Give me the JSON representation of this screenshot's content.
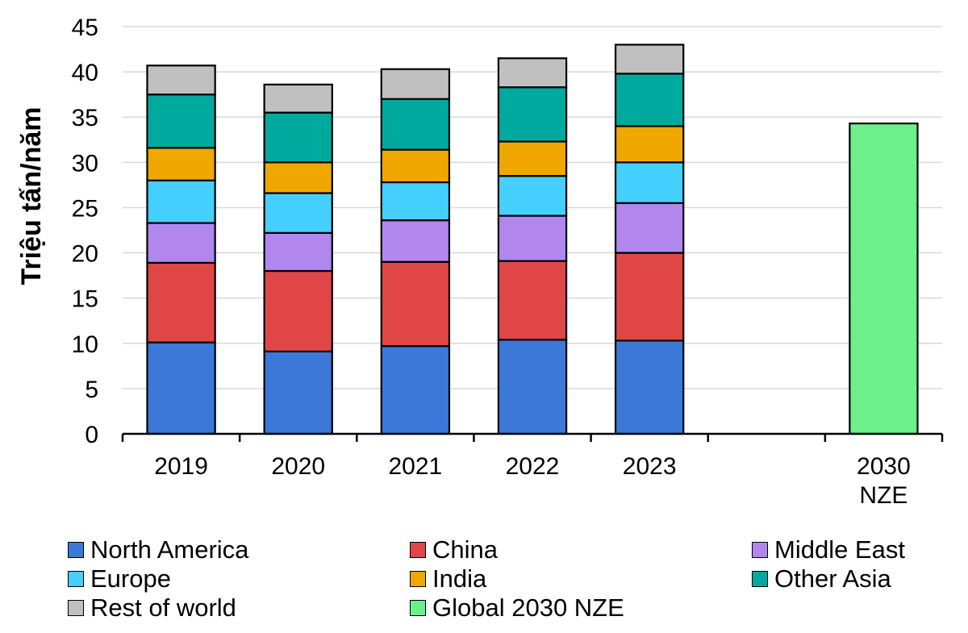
{
  "chart_data": {
    "type": "bar",
    "stacked": true,
    "title": "",
    "xlabel": "",
    "ylabel": "Triệu tấn/năm",
    "ylim": [
      0,
      45
    ],
    "yticks": [
      0,
      5,
      10,
      15,
      20,
      25,
      30,
      35,
      40,
      45
    ],
    "categories": [
      "2019",
      "2020",
      "2021",
      "2022",
      "2023",
      "",
      "2030 NZE"
    ],
    "category_lines": [
      [
        "2019"
      ],
      [
        "2020"
      ],
      [
        "2021"
      ],
      [
        "2022"
      ],
      [
        "2023"
      ],
      [
        ""
      ],
      [
        "2030",
        "NZE"
      ]
    ],
    "grid": true,
    "series": [
      {
        "name": "North America",
        "color": "#3c78d8",
        "values": [
          10.1,
          9.1,
          9.7,
          10.4,
          10.3,
          null,
          null
        ]
      },
      {
        "name": "China",
        "color": "#e04646",
        "values": [
          8.8,
          8.9,
          9.3,
          8.7,
          9.7,
          null,
          null
        ]
      },
      {
        "name": "Middle East",
        "color": "#b187ee",
        "values": [
          4.4,
          4.2,
          4.6,
          5.0,
          5.5,
          null,
          null
        ]
      },
      {
        "name": "Europe",
        "color": "#45cfff",
        "values": [
          4.7,
          4.4,
          4.2,
          4.4,
          4.5,
          null,
          null
        ]
      },
      {
        "name": "India",
        "color": "#f0a800",
        "values": [
          3.6,
          3.4,
          3.6,
          3.8,
          4.0,
          null,
          null
        ]
      },
      {
        "name": "Other Asia",
        "color": "#00a99d",
        "values": [
          5.9,
          5.5,
          5.6,
          6.0,
          5.8,
          null,
          null
        ]
      },
      {
        "name": "Rest of world",
        "color": "#c0c0c0",
        "values": [
          3.2,
          3.1,
          3.3,
          3.2,
          3.2,
          null,
          null
        ]
      },
      {
        "name": "Global 2030 NZE",
        "color": "#6cf08c",
        "values": [
          null,
          null,
          null,
          null,
          null,
          null,
          34.3
        ]
      }
    ],
    "legend": {
      "placement": "bottom",
      "items": [
        "North America",
        "China",
        "Middle East",
        "Europe",
        "India",
        "Other Asia",
        "Rest of world",
        "Global 2030 NZE"
      ]
    }
  }
}
